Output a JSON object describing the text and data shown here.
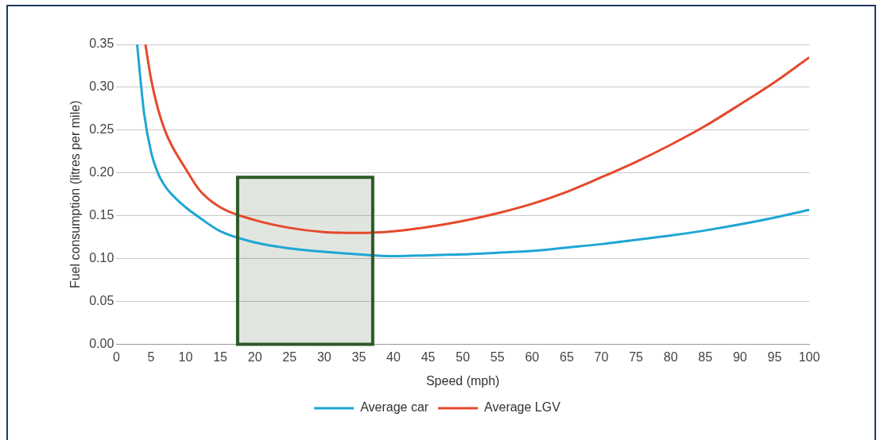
{
  "chart_data": {
    "type": "line",
    "xlabel": "Speed (mph)",
    "ylabel": "Fuel consumption (litres per mile)",
    "xlim": [
      0,
      100
    ],
    "xticks": [
      0,
      5,
      10,
      15,
      20,
      25,
      30,
      35,
      40,
      45,
      50,
      55,
      60,
      65,
      70,
      75,
      80,
      85,
      90,
      95,
      100
    ],
    "ylim": [
      0,
      0.35
    ],
    "yticks": [
      {
        "value": 0,
        "label": "0.00"
      },
      {
        "value": 0.05,
        "label": "0.05"
      },
      {
        "value": 0.1,
        "label": "0.10"
      },
      {
        "value": 0.15,
        "label": "0.15"
      },
      {
        "value": 0.2,
        "label": "0.20"
      },
      {
        "value": 0.25,
        "label": "0.25"
      },
      {
        "value": 0.3,
        "label": "0.30"
      },
      {
        "value": 0.35,
        "label": "0.35"
      }
    ],
    "bands": [
      {
        "axis": "x",
        "from": 17.5,
        "to": 37,
        "color": "#2d5a27"
      }
    ],
    "grid": "y",
    "legend": "bottom",
    "marker": "none",
    "line_style": "solid",
    "series": [
      {
        "name": "Average car",
        "color": "#1fa6d4",
        "x": [
          3,
          4,
          5,
          6,
          7,
          8,
          10,
          12,
          15,
          20,
          25,
          30,
          35,
          40,
          45,
          50,
          55,
          60,
          65,
          70,
          75,
          80,
          85,
          90,
          95,
          100
        ],
        "values": [
          0.35,
          0.27,
          0.225,
          0.2,
          0.185,
          0.175,
          0.16,
          0.148,
          0.132,
          0.119,
          0.112,
          0.108,
          0.105,
          0.103,
          0.104,
          0.105,
          0.107,
          0.109,
          0.113,
          0.117,
          0.122,
          0.127,
          0.133,
          0.14,
          0.148,
          0.157
        ]
      },
      {
        "name": "Average LGV",
        "color": "#e5492d",
        "x": [
          4.2,
          5,
          6,
          7,
          8,
          10,
          12,
          15,
          20,
          25,
          30,
          35,
          40,
          45,
          50,
          55,
          60,
          65,
          70,
          75,
          80,
          85,
          90,
          95,
          100
        ],
        "values": [
          0.35,
          0.31,
          0.275,
          0.25,
          0.232,
          0.205,
          0.18,
          0.16,
          0.145,
          0.136,
          0.131,
          0.13,
          0.132,
          0.137,
          0.144,
          0.153,
          0.164,
          0.178,
          0.195,
          0.213,
          0.233,
          0.255,
          0.28,
          0.306,
          0.335
        ]
      }
    ]
  }
}
